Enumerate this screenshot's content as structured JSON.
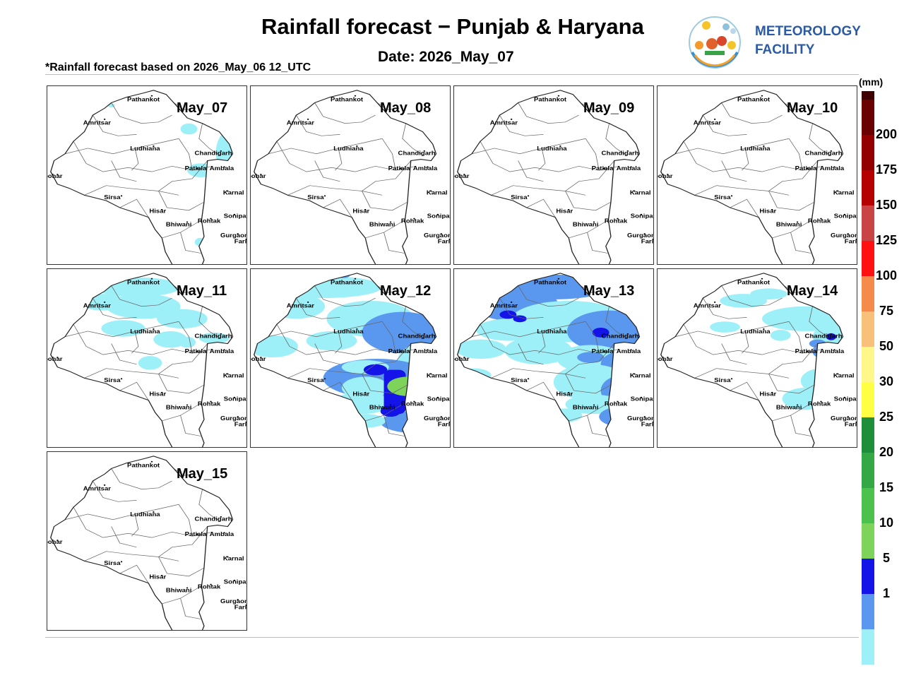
{
  "header": {
    "title": "Rainfall forecast − Punjab & Haryana",
    "date": "Date: 2026_May_07",
    "basis": "*Rainfall forecast based on 2026_May_06 12_UTC"
  },
  "organization": {
    "name_line1": "METEOROLOGY",
    "name_line2": "FACILITY",
    "logo_text": "METEOROLOGY FACILITY",
    "color": "#2a5aa8"
  },
  "cities": [
    "Pathankot",
    "Amritsar",
    "Ludhiana",
    "Chandigarh",
    "Patiala",
    "Ambala",
    "Abohar",
    "Karnal",
    "Sirsa",
    "Hisar",
    "Rohtak",
    "Sonipat",
    "Bhiwani",
    "Gurgaon",
    "Faridabad"
  ],
  "panels": [
    {
      "label": "May_07",
      "coverage": "isolated light rain over northeast Haryana"
    },
    {
      "label": "May_08",
      "coverage": "mostly dry, isolated light rain in the east"
    },
    {
      "label": "May_09",
      "coverage": "mostly dry, isolated light rain in the east"
    },
    {
      "label": "May_10",
      "coverage": "dry"
    },
    {
      "label": "May_11",
      "coverage": "scattered light rain over Punjab"
    },
    {
      "label": "May_12",
      "coverage": "widespread rain, heavy over central Haryana"
    },
    {
      "label": "May_13",
      "coverage": "widespread rain over Punjab and Haryana"
    },
    {
      "label": "May_14",
      "coverage": "rain over northeast Haryana"
    },
    {
      "label": "May_15",
      "coverage": "dry"
    }
  ],
  "legend": {
    "unit": "(mm)",
    "colors": [
      "#3e0000",
      "#6b0000",
      "#920000",
      "#b50000",
      "#c94444",
      "#ff1111",
      "#f48b4a",
      "#f9c07a",
      "#fff789",
      "#ffff44",
      "#1f8e3a",
      "#33a845",
      "#4cc14c",
      "#7ed35a",
      "#1414e8",
      "#5a98f0",
      "#9ef0f8"
    ],
    "ticks": [
      "200",
      "175",
      "150",
      "125",
      "100",
      "75",
      "50",
      "30",
      "25",
      "20",
      "15",
      "10",
      "5",
      "1"
    ]
  }
}
